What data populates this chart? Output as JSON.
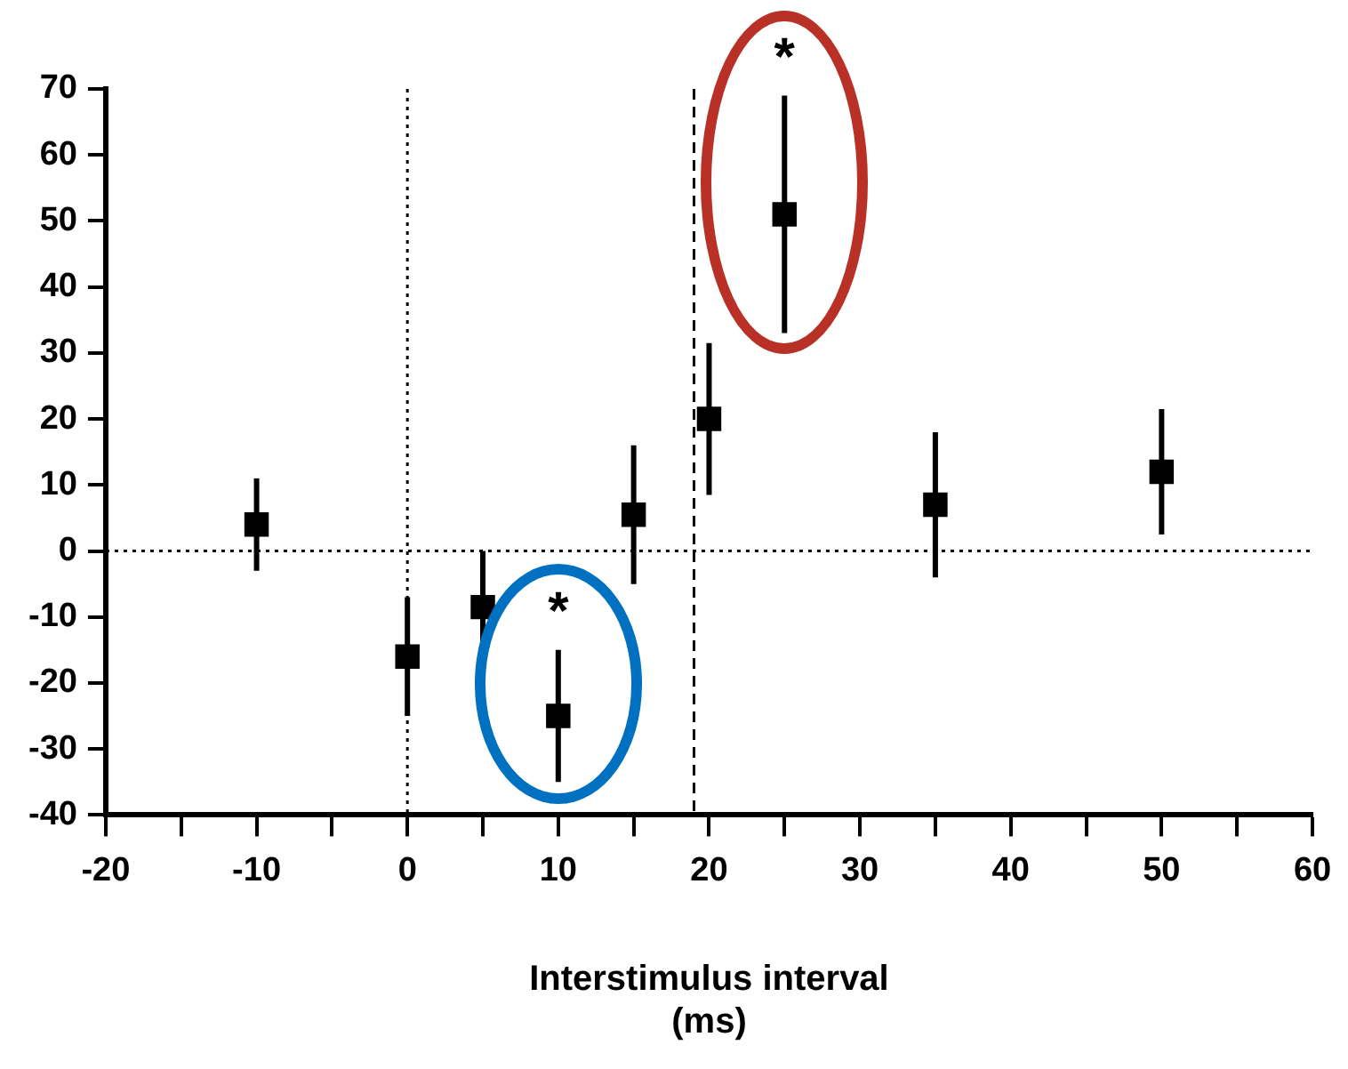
{
  "chart_data": {
    "type": "scatter",
    "xlabel": "Interstimulus interval\n(ms)",
    "x": [
      -10,
      0,
      5,
      10,
      15,
      20,
      25,
      35,
      50
    ],
    "series": [
      {
        "color": "#000000",
        "values": [
          4,
          -16,
          -8.5,
          -25,
          5.5,
          20,
          51,
          7,
          12
        ],
        "errors": [
          7,
          9,
          8.5,
          10,
          10.5,
          11.5,
          18,
          11,
          9.5
        ]
      }
    ],
    "marker": "square",
    "grid": false,
    "legend": false,
    "xlim": [
      -20,
      60
    ],
    "xticks": [
      -20,
      {
        "value": -15,
        "label": null
      },
      -10,
      {
        "value": -5,
        "label": null
      },
      0,
      {
        "value": 5,
        "label": null
      },
      10,
      {
        "value": 15,
        "label": null
      },
      20,
      {
        "value": 25,
        "label": null
      },
      30,
      {
        "value": 35,
        "label": null
      },
      40,
      {
        "value": 45,
        "label": null
      },
      50,
      {
        "value": 55,
        "label": null
      },
      60
    ],
    "ylim": [
      -40,
      70
    ],
    "yticks": [
      -40,
      -30,
      -20,
      -10,
      0,
      10,
      20,
      30,
      40,
      50,
      60,
      70
    ],
    "ref_lines": [
      {
        "axis": "x",
        "value": 0,
        "line_style": "dotted"
      },
      {
        "axis": "y",
        "value": 0,
        "line_style": "dotted"
      },
      {
        "axis": "x",
        "value": 19,
        "line_style": "dashed"
      }
    ],
    "annotations": [
      {
        "text": "*",
        "x": 10,
        "y": -25
      },
      {
        "text": "*",
        "x": 25,
        "y": 51
      }
    ]
  }
}
